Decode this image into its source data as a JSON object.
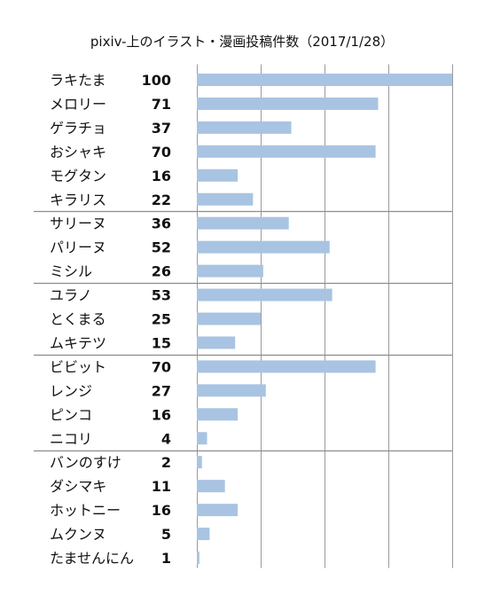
{
  "chart_data": {
    "type": "bar",
    "orientation": "horizontal",
    "title": "pixiv-上のイラスト・漫画投稿件数（2017/1/28）",
    "xlabel": "",
    "ylabel": "",
    "xlim": [
      0,
      100
    ],
    "grid": true,
    "legend": "none",
    "bar_color": "#a8c4e2",
    "groups": [
      {
        "categories": [
          "ラキたま",
          "メロリー",
          "ゲラチョ",
          "おシャキ",
          "モグタン",
          "キラリス"
        ],
        "values": [
          100,
          71,
          37,
          70,
          16,
          22
        ]
      },
      {
        "categories": [
          "サリーヌ",
          "パリーヌ",
          "ミシル"
        ],
        "values": [
          36,
          52,
          26
        ]
      },
      {
        "categories": [
          "ユラノ",
          "とくまる",
          "ムキテツ"
        ],
        "values": [
          53,
          25,
          15
        ]
      },
      {
        "categories": [
          "ビビット",
          "レンジ",
          "ピンコ",
          "ニコリ"
        ],
        "values": [
          70,
          27,
          16,
          4
        ]
      },
      {
        "categories": [
          "バンのすけ",
          "ダシマキ",
          "ホットニー",
          "ムクンヌ",
          "たませんにん"
        ],
        "values": [
          2,
          11,
          16,
          5,
          1
        ]
      }
    ]
  }
}
